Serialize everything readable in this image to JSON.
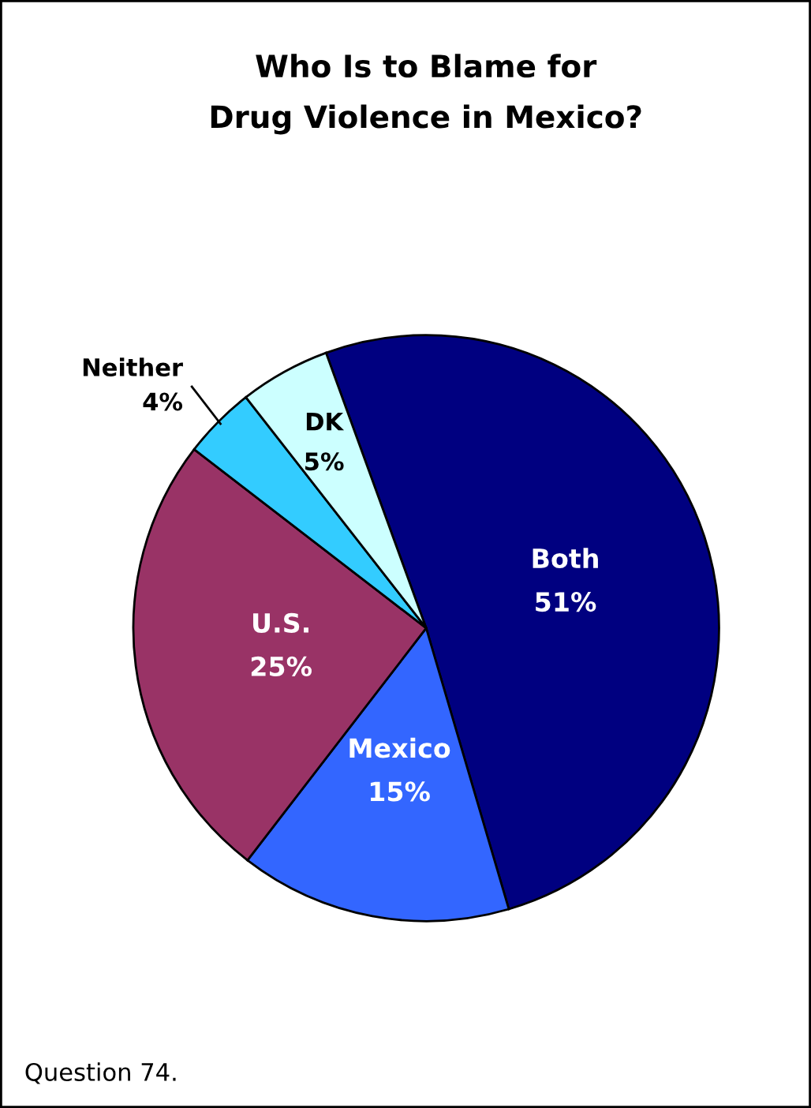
{
  "chart_data": {
    "type": "pie",
    "title": "Who Is to Blame for\nDrug Violence in Mexico?",
    "categories": [
      "Both",
      "Mexico",
      "U.S.",
      "Neither",
      "DK"
    ],
    "values": [
      51,
      15,
      25,
      4,
      5
    ],
    "colors": [
      "#000080",
      "#3366ff",
      "#993366",
      "#33ccff",
      "#ccffff"
    ],
    "value_labels": [
      "51%",
      "15%",
      "25%",
      "4%",
      "5%"
    ],
    "legend": false,
    "annotations": [
      "Question 74."
    ]
  }
}
